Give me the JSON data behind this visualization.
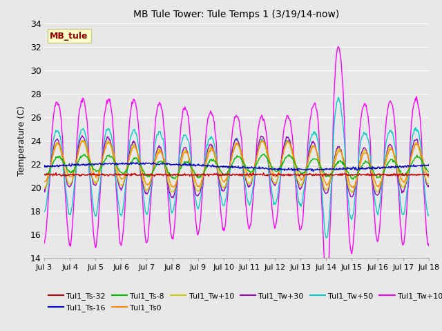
{
  "title": "MB Tule Tower: Tule Temps 1 (3/19/14-now)",
  "ylabel": "Temperature (C)",
  "xlim": [
    3,
    18
  ],
  "ylim": [
    14,
    34
  ],
  "yticks": [
    14,
    16,
    18,
    20,
    22,
    24,
    26,
    28,
    30,
    32,
    34
  ],
  "xtick_positions": [
    3,
    4,
    5,
    6,
    7,
    8,
    9,
    10,
    11,
    12,
    13,
    14,
    15,
    16,
    17,
    18
  ],
  "xtick_labels": [
    "Jul 3",
    "Jul 4",
    "Jul 5",
    "Jul 6",
    "Jul 7",
    "Jul 8",
    "Jul 9",
    "Jul 10",
    "Jul 11",
    "Jul 12",
    "Jul 13",
    "Jul 14",
    "Jul 15",
    "Jul 16",
    "Jul 17",
    "Jul 18"
  ],
  "bg_color": "#e8e8e8",
  "grid_color": "#ffffff",
  "series_colors": {
    "Tul1_Ts-32": "#cc0000",
    "Tul1_Ts-16": "#0000cc",
    "Tul1_Ts-8": "#00bb00",
    "Tul1_Ts0": "#ff8800",
    "Tul1_Tw+10": "#cccc00",
    "Tul1_Tw+30": "#9900cc",
    "Tul1_Tw+50": "#00cccc",
    "Tul1_Tw+100": "#ff00ff"
  },
  "station_label": "MB_tule",
  "station_label_color": "#990000",
  "station_box_bg": "#ffffcc",
  "station_box_edge": "#cccc88"
}
